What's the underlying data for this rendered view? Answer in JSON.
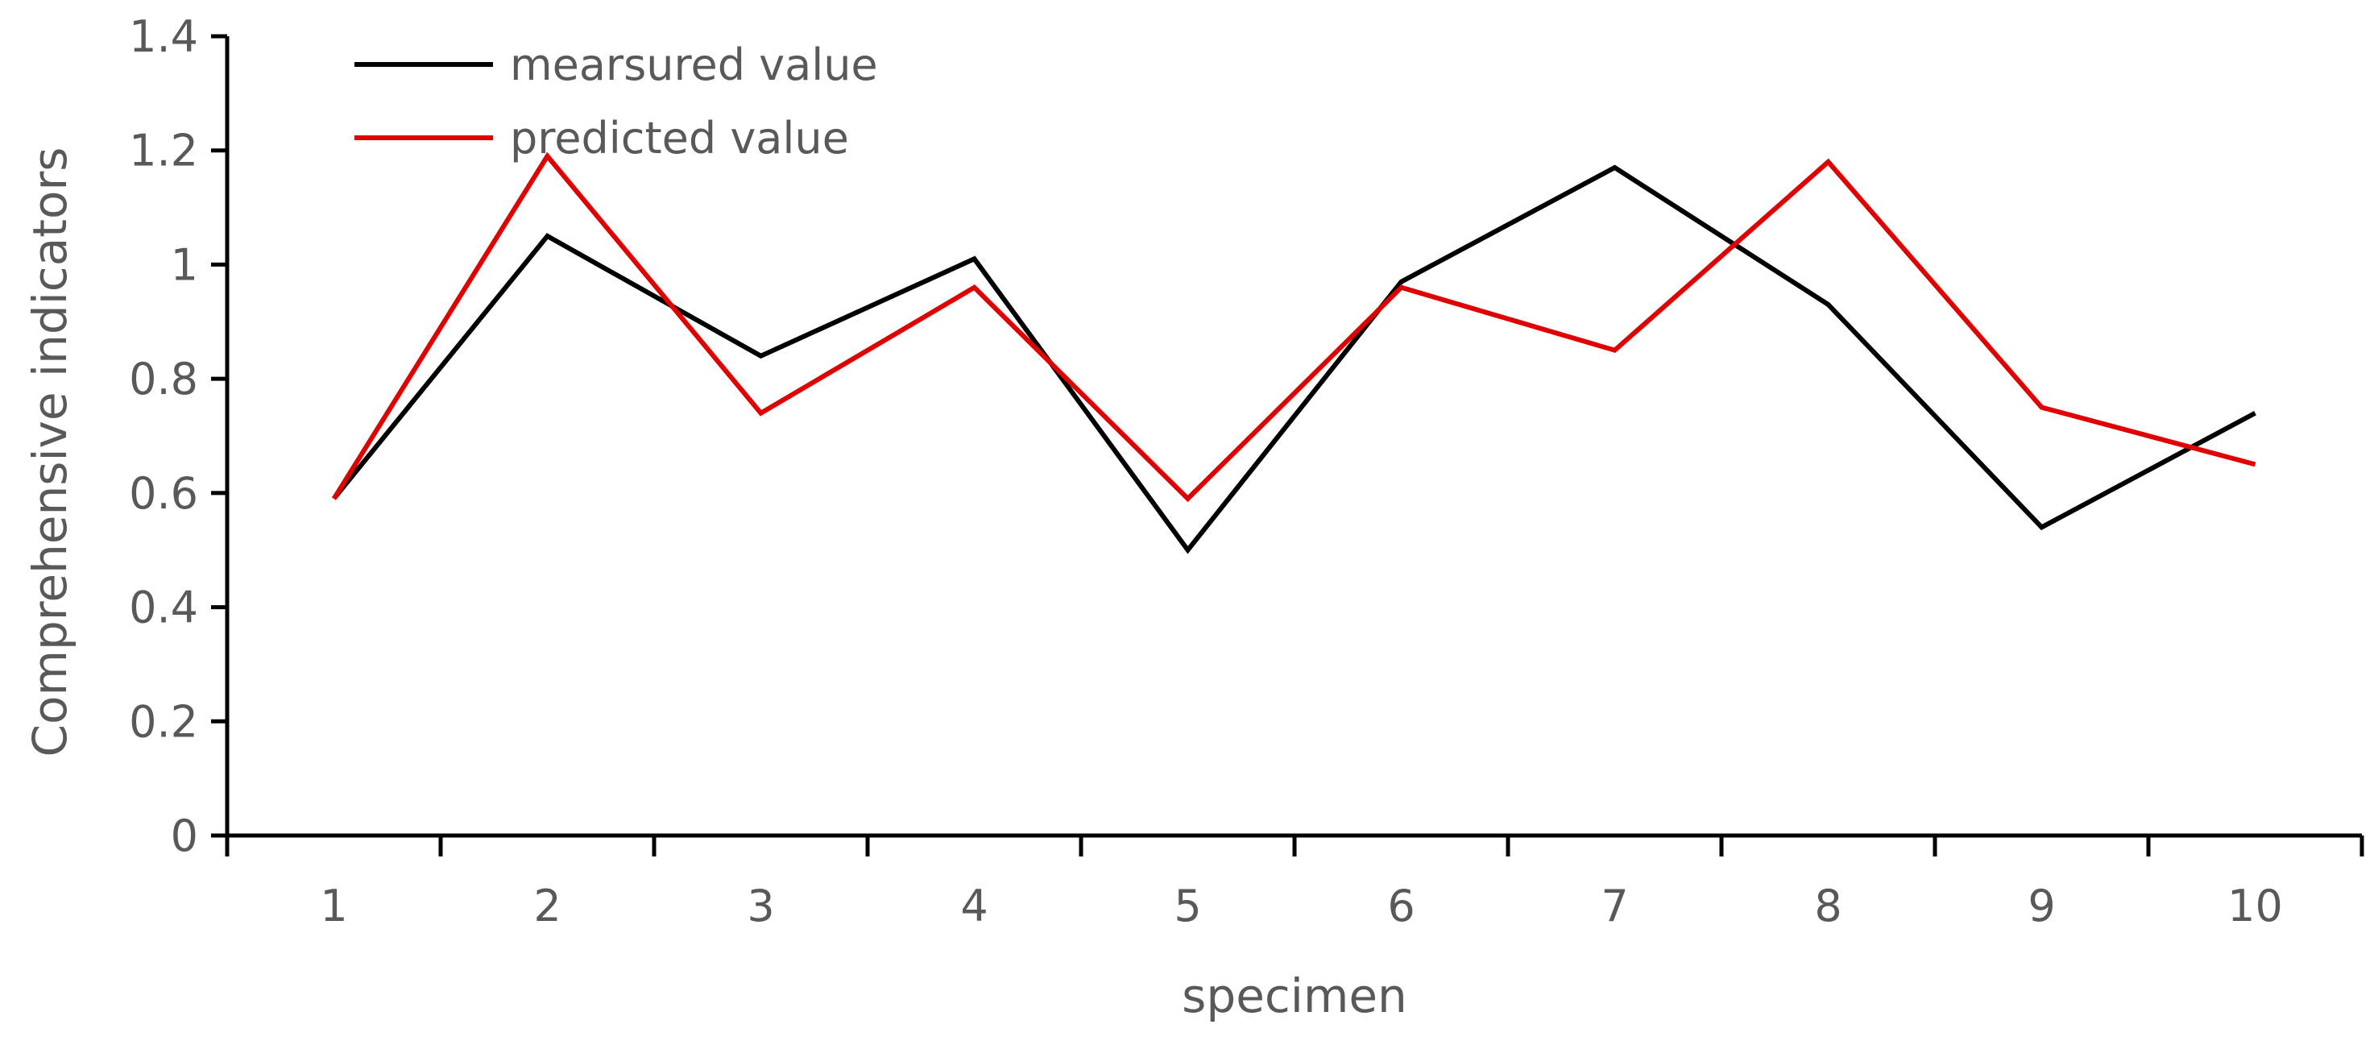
{
  "chart_data": {
    "type": "line",
    "title": "",
    "xlabel": "specimen",
    "ylabel": "Comprehensive indicators",
    "categories": [
      "1",
      "2",
      "3",
      "4",
      "5",
      "6",
      "7",
      "8",
      "9",
      "10"
    ],
    "ylim": [
      0,
      1.4
    ],
    "yticks": [
      "0",
      "0.2",
      "0.4",
      "0.6",
      "0.8",
      "1",
      "1.2",
      "1.4"
    ],
    "grid": false,
    "legend_position": "top-left",
    "series": [
      {
        "name": "mearsured value",
        "color": "#000000",
        "values": [
          0.59,
          1.05,
          0.84,
          1.01,
          0.5,
          0.97,
          1.17,
          0.93,
          0.54,
          0.74
        ]
      },
      {
        "name": "predicted value",
        "color": "#e00000",
        "values": [
          0.59,
          1.19,
          0.74,
          0.96,
          0.59,
          0.96,
          0.85,
          1.18,
          0.75,
          0.65
        ]
      }
    ]
  }
}
